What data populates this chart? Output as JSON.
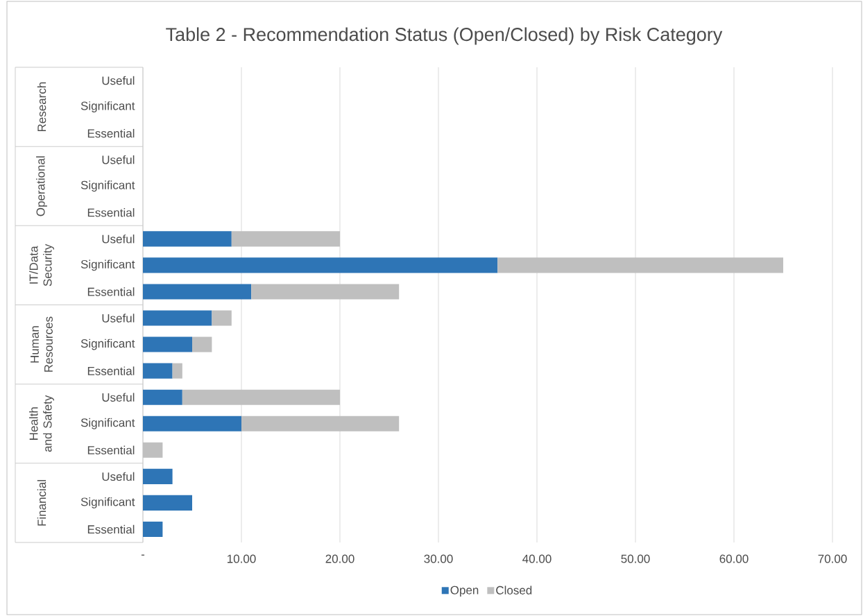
{
  "chart_data": {
    "type": "bar",
    "orientation": "horizontal",
    "stacked": true,
    "title": "Table 2 - Recommendation Status (Open/Closed) by Risk Category",
    "categories": [
      "Useful",
      "Significant",
      "Essential",
      "Useful",
      "Significant",
      "Essential",
      "Useful",
      "Significant",
      "Essential",
      "Useful",
      "Significant",
      "Essential",
      "Useful",
      "Significant",
      "Essential",
      "Useful",
      "Significant",
      "Essential"
    ],
    "annotations": [
      "Research",
      "Operational",
      "IT/Data Security",
      "Human Resources",
      "Health and Safety",
      "Financial"
    ],
    "series": [
      {
        "name": "Open",
        "color": "#2e75b6",
        "values": [
          null,
          null,
          null,
          null,
          null,
          null,
          9,
          36,
          11,
          7,
          5,
          3,
          4,
          10,
          null,
          3,
          5,
          2
        ]
      },
      {
        "name": "Closed",
        "color": "#bfbfbf",
        "values": [
          null,
          null,
          null,
          null,
          null,
          null,
          11,
          29,
          15,
          2,
          2,
          1,
          16,
          16,
          2,
          null,
          null,
          null
        ]
      }
    ],
    "xlim": [
      0,
      70
    ],
    "xticks": [
      {
        "value": 0,
        "label": "-"
      },
      {
        "value": 10,
        "label": "10.00"
      },
      {
        "value": 20,
        "label": "20.00"
      },
      {
        "value": 30,
        "label": "30.00"
      },
      {
        "value": 40,
        "label": "40.00"
      },
      {
        "value": 50,
        "label": "50.00"
      },
      {
        "value": 60,
        "label": "60.00"
      },
      {
        "value": 70,
        "label": "70.00"
      }
    ],
    "grid": "x",
    "legend": "bottom"
  }
}
